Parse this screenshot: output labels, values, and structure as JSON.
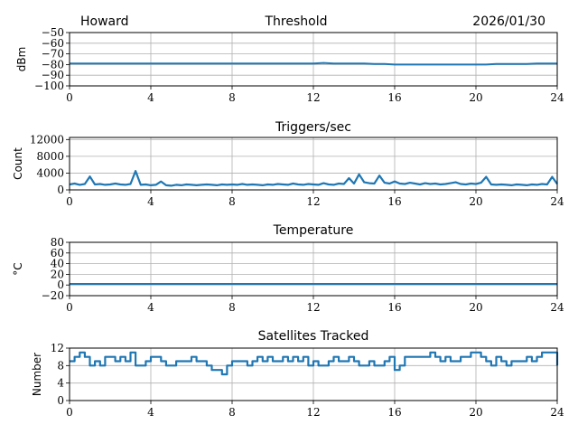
{
  "header": {
    "station": "Howard",
    "date": "2026/01/30"
  },
  "chart_data": [
    {
      "type": "line",
      "title": "Threshold",
      "xlabel": "",
      "ylabel": "dBm",
      "xlim": [
        0,
        24
      ],
      "xticks": [
        0,
        4,
        8,
        12,
        16,
        20,
        24
      ],
      "ylim": [
        -100,
        -50
      ],
      "yticks": [
        -100,
        -90,
        -80,
        -70,
        -60,
        -50
      ],
      "grid": true,
      "x_step_hours": 0.5,
      "values": [
        -79,
        -79,
        -79,
        -79,
        -79,
        -79,
        -79,
        -79,
        -79,
        -79,
        -79,
        -79,
        -79,
        -79,
        -79,
        -79,
        -79,
        -79,
        -79,
        -79,
        -79,
        -79,
        -79,
        -79,
        -79,
        -78.5,
        -79,
        -79,
        -79,
        -79,
        -79.5,
        -79.5,
        -80,
        -80,
        -80,
        -80,
        -80,
        -80,
        -80,
        -80,
        -80,
        -80,
        -79.5,
        -79.5,
        -79.5,
        -79.5,
        -79,
        -79,
        -79
      ]
    },
    {
      "type": "line",
      "title": "Triggers/sec",
      "xlabel": "",
      "ylabel": "Count",
      "xlim": [
        0,
        24
      ],
      "xticks": [
        0,
        4,
        8,
        12,
        16,
        20,
        24
      ],
      "ylim": [
        0,
        12500
      ],
      "yticks": [
        0,
        4000,
        8000,
        12000
      ],
      "grid": true,
      "x_step_hours": 0.25,
      "values": [
        1300,
        1500,
        1200,
        1400,
        3200,
        1300,
        1400,
        1200,
        1300,
        1500,
        1300,
        1200,
        1400,
        4500,
        1200,
        1300,
        1100,
        1200,
        2000,
        1100,
        1000,
        1200,
        1100,
        1300,
        1200,
        1100,
        1200,
        1300,
        1200,
        1100,
        1300,
        1200,
        1300,
        1200,
        1400,
        1200,
        1300,
        1200,
        1100,
        1300,
        1200,
        1400,
        1300,
        1200,
        1500,
        1300,
        1200,
        1400,
        1300,
        1200,
        1600,
        1300,
        1200,
        1500,
        1400,
        2800,
        1500,
        3700,
        1800,
        1600,
        1500,
        3400,
        1700,
        1500,
        2000,
        1500,
        1400,
        1700,
        1500,
        1300,
        1600,
        1400,
        1500,
        1300,
        1400,
        1600,
        1800,
        1400,
        1300,
        1500,
        1400,
        1700,
        3100,
        1300,
        1200,
        1300,
        1200,
        1100,
        1300,
        1200,
        1100,
        1300,
        1200,
        1400,
        1300,
        3100,
        1400
      ]
    },
    {
      "type": "line",
      "title": "Temperature",
      "xlabel": "",
      "ylabel": "°C",
      "xlim": [
        0,
        24
      ],
      "xticks": [
        0,
        4,
        8,
        12,
        16,
        20,
        24
      ],
      "ylim": [
        -20,
        80
      ],
      "yticks": [
        -20,
        0,
        20,
        40,
        60,
        80
      ],
      "grid": true,
      "x_step_hours": 0.5,
      "values": [
        2,
        2,
        2,
        2,
        2,
        2,
        2,
        2,
        2,
        2,
        2,
        2,
        2,
        2,
        2,
        2,
        2,
        2,
        2,
        2,
        2,
        2,
        2,
        2,
        2,
        2,
        2,
        2,
        2,
        2,
        2,
        2,
        2,
        2,
        2,
        2,
        2,
        2,
        2,
        2,
        2,
        2,
        2,
        2,
        2,
        2,
        2,
        2,
        2
      ]
    },
    {
      "type": "line",
      "title": "Satellites Tracked",
      "xlabel": "",
      "ylabel": "Number",
      "xlim": [
        0,
        24
      ],
      "xticks": [
        0,
        4,
        8,
        12,
        16,
        20,
        24
      ],
      "ylim": [
        0,
        12
      ],
      "yticks": [
        0,
        4,
        8,
        12
      ],
      "grid": true,
      "x_step_hours": 0.25,
      "values": [
        9,
        10,
        11,
        10,
        8,
        9,
        8,
        10,
        10,
        9,
        10,
        9,
        11,
        8,
        8,
        9,
        10,
        10,
        9,
        8,
        8,
        9,
        9,
        9,
        10,
        9,
        9,
        8,
        7,
        7,
        6,
        8,
        9,
        9,
        9,
        8,
        9,
        10,
        9,
        10,
        9,
        9,
        10,
        9,
        10,
        9,
        10,
        8,
        9,
        8,
        8,
        9,
        10,
        9,
        9,
        10,
        9,
        8,
        8,
        9,
        8,
        8,
        9,
        10,
        7,
        8,
        10,
        10,
        10,
        10,
        10,
        11,
        10,
        9,
        10,
        9,
        9,
        10,
        10,
        11,
        11,
        10,
        9,
        8,
        10,
        9,
        8,
        9,
        9,
        9,
        10,
        9,
        10,
        11,
        11,
        11,
        8
      ]
    }
  ],
  "colors": {
    "line": "#1f77b4",
    "grid": "#b0b0b0",
    "axis": "#000000"
  }
}
